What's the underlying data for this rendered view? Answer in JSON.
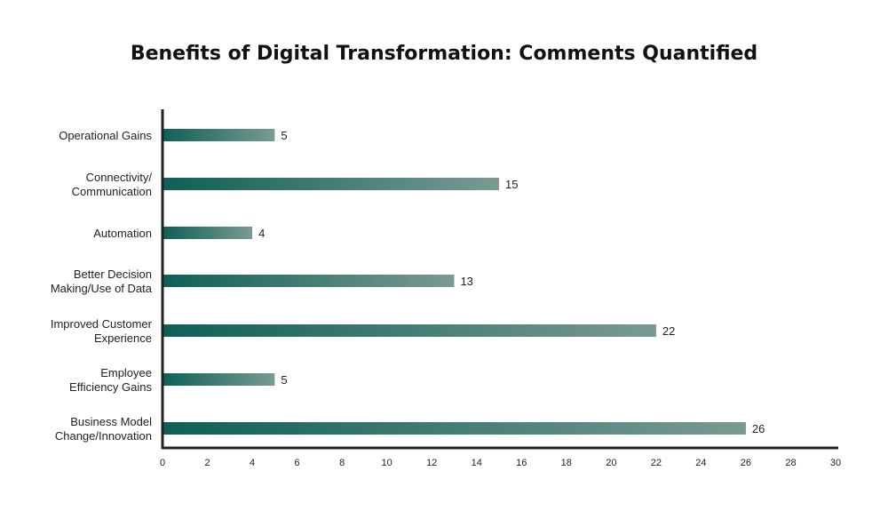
{
  "chart_data": {
    "type": "bar",
    "orientation": "horizontal",
    "title": "Benefits of Digital Transformation: Comments Quantified",
    "categories": [
      [
        "Operational Gains"
      ],
      [
        "Connectivity/",
        "Communication"
      ],
      [
        "Automation"
      ],
      [
        "Better Decision",
        "Making/Use of Data"
      ],
      [
        "Improved Customer",
        "Experience"
      ],
      [
        "Employee",
        "Efficiency Gains"
      ],
      [
        "Business Model",
        "Change/Innovation"
      ]
    ],
    "values": [
      5,
      15,
      4,
      13,
      22,
      5,
      26
    ],
    "data_labels": [
      "5",
      "15",
      "4",
      "13",
      "22",
      "5",
      "26"
    ],
    "xlim": [
      0,
      30
    ],
    "x_ticks": [
      0,
      2,
      4,
      6,
      8,
      10,
      12,
      14,
      16,
      18,
      20,
      22,
      24,
      26,
      28,
      30
    ],
    "grid": false,
    "legend": "none",
    "colors": {
      "bar_start": "#0f5f56",
      "bar_end": "#7a9a93",
      "axis": "#222222",
      "text": "#222222"
    }
  }
}
